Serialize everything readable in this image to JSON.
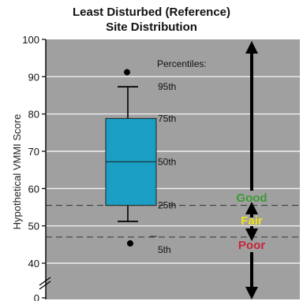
{
  "chart_data": {
    "type": "box",
    "title": [
      "Least Disturbed (Reference)",
      "Site Distribution"
    ],
    "ylabel": "Hypothetical VMMI Score",
    "ylim": [
      0,
      100
    ],
    "y_ticks": [
      "100",
      "90",
      "80",
      "70",
      "60",
      "50",
      "40",
      "0"
    ],
    "y_tick_values": [
      100,
      90,
      80,
      70,
      60,
      50,
      40,
      0
    ],
    "axis_break": true,
    "grid": true,
    "box": {
      "q1": 55.5,
      "median": 67.2,
      "q3": 78.8,
      "whisker_low": 51.2,
      "whisker_high": 87.3,
      "outlier_high": 91.2,
      "outlier_low": 45.3,
      "color": "#1b9ec4"
    },
    "percentiles_header": "Percentiles:",
    "percentile_labels": [
      {
        "text": "95th",
        "value": 87.3
      },
      {
        "text": "75th",
        "value": 78.8
      },
      {
        "text": "50th",
        "value": 67.2
      },
      {
        "text": "25th",
        "value": 55.5
      },
      {
        "text": "5th",
        "value": 51.2
      }
    ],
    "thresholds": [
      {
        "value": 55.5,
        "style": "dashed"
      },
      {
        "value": 47.0,
        "style": "dashed"
      }
    ],
    "condition_classes": [
      {
        "text": "Good",
        "color": "#3a9c34"
      },
      {
        "text": "Fair",
        "color": "#f2e31d"
      },
      {
        "text": "Poor",
        "color": "#c7243a"
      }
    ],
    "plot_background": "#a0a0a0"
  }
}
